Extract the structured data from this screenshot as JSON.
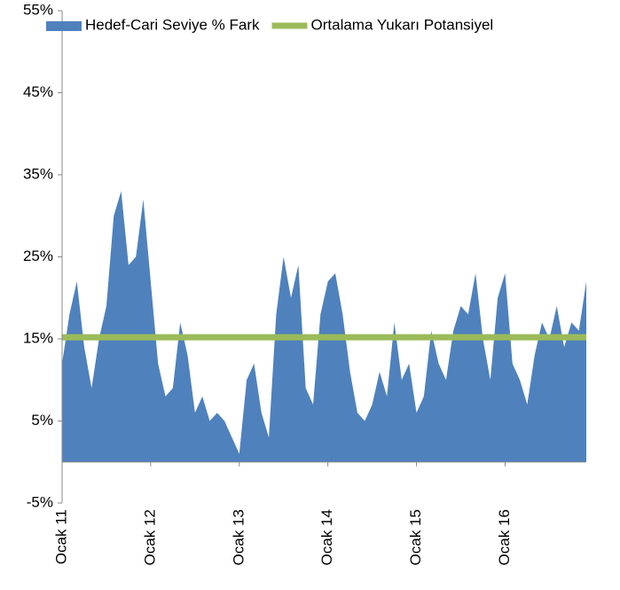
{
  "chart_data": {
    "type": "area",
    "categories": [
      "Ocak 11",
      null,
      null,
      null,
      null,
      null,
      null,
      null,
      null,
      null,
      null,
      null,
      "Ocak 12",
      null,
      null,
      null,
      null,
      null,
      null,
      null,
      null,
      null,
      null,
      null,
      "Ocak 13",
      null,
      null,
      null,
      null,
      null,
      null,
      null,
      null,
      null,
      null,
      null,
      "Ocak 14",
      null,
      null,
      null,
      null,
      null,
      null,
      null,
      null,
      null,
      null,
      null,
      "Ocak 15",
      null,
      null,
      null,
      null,
      null,
      null,
      null,
      null,
      null,
      null,
      null,
      "Ocak 16",
      null,
      null,
      null,
      null,
      null,
      null,
      null,
      null,
      null,
      null,
      null
    ],
    "series": [
      {
        "name": "Hedef-Cari Seviye % Fark",
        "color": "#4f81bd",
        "kind": "area",
        "values": [
          12,
          18,
          22,
          14,
          9,
          15,
          19,
          30,
          33,
          24,
          25,
          32,
          22,
          12,
          8,
          9,
          17,
          13,
          6,
          8,
          5,
          6,
          5,
          3,
          1,
          10,
          12,
          6,
          3,
          18,
          25,
          20,
          24,
          9,
          7,
          18,
          22,
          23,
          18,
          11,
          6,
          5,
          7,
          11,
          8,
          17,
          10,
          12,
          6,
          8,
          16,
          12,
          10,
          16,
          19,
          18,
          23,
          15,
          10,
          20,
          23,
          12,
          10,
          7,
          13,
          17,
          15,
          19,
          14,
          17,
          16,
          22
        ]
      },
      {
        "name": "Ortalama Yukarı Potansiyel",
        "color": "#9bbb59",
        "kind": "line",
        "values": [
          15.2,
          15.2,
          15.2,
          15.2,
          15.2,
          15.2,
          15.2,
          15.2,
          15.2,
          15.2,
          15.2,
          15.2,
          15.2,
          15.2,
          15.2,
          15.2,
          15.2,
          15.2,
          15.2,
          15.2,
          15.2,
          15.2,
          15.2,
          15.2,
          15.2,
          15.2,
          15.2,
          15.2,
          15.2,
          15.2,
          15.2,
          15.2,
          15.2,
          15.2,
          15.2,
          15.2,
          15.2,
          15.2,
          15.2,
          15.2,
          15.2,
          15.2,
          15.2,
          15.2,
          15.2,
          15.2,
          15.2,
          15.2,
          15.2,
          15.2,
          15.2,
          15.2,
          15.2,
          15.2,
          15.2,
          15.2,
          15.2,
          15.2,
          15.2,
          15.2,
          15.2,
          15.2,
          15.2,
          15.2,
          15.2,
          15.2,
          15.2,
          15.2,
          15.2,
          15.2,
          15.2,
          15.2
        ]
      }
    ],
    "ylim": [
      -5,
      55
    ],
    "yticks": [
      {
        "value": -5,
        "label": "-5%"
      },
      {
        "value": 5,
        "label": "5%"
      },
      {
        "value": 15,
        "label": "15%"
      },
      {
        "value": 25,
        "label": "25%"
      },
      {
        "value": 35,
        "label": "35%"
      },
      {
        "value": 45,
        "label": "45%"
      },
      {
        "value": 55,
        "label": "55%"
      }
    ],
    "legend": "top"
  }
}
